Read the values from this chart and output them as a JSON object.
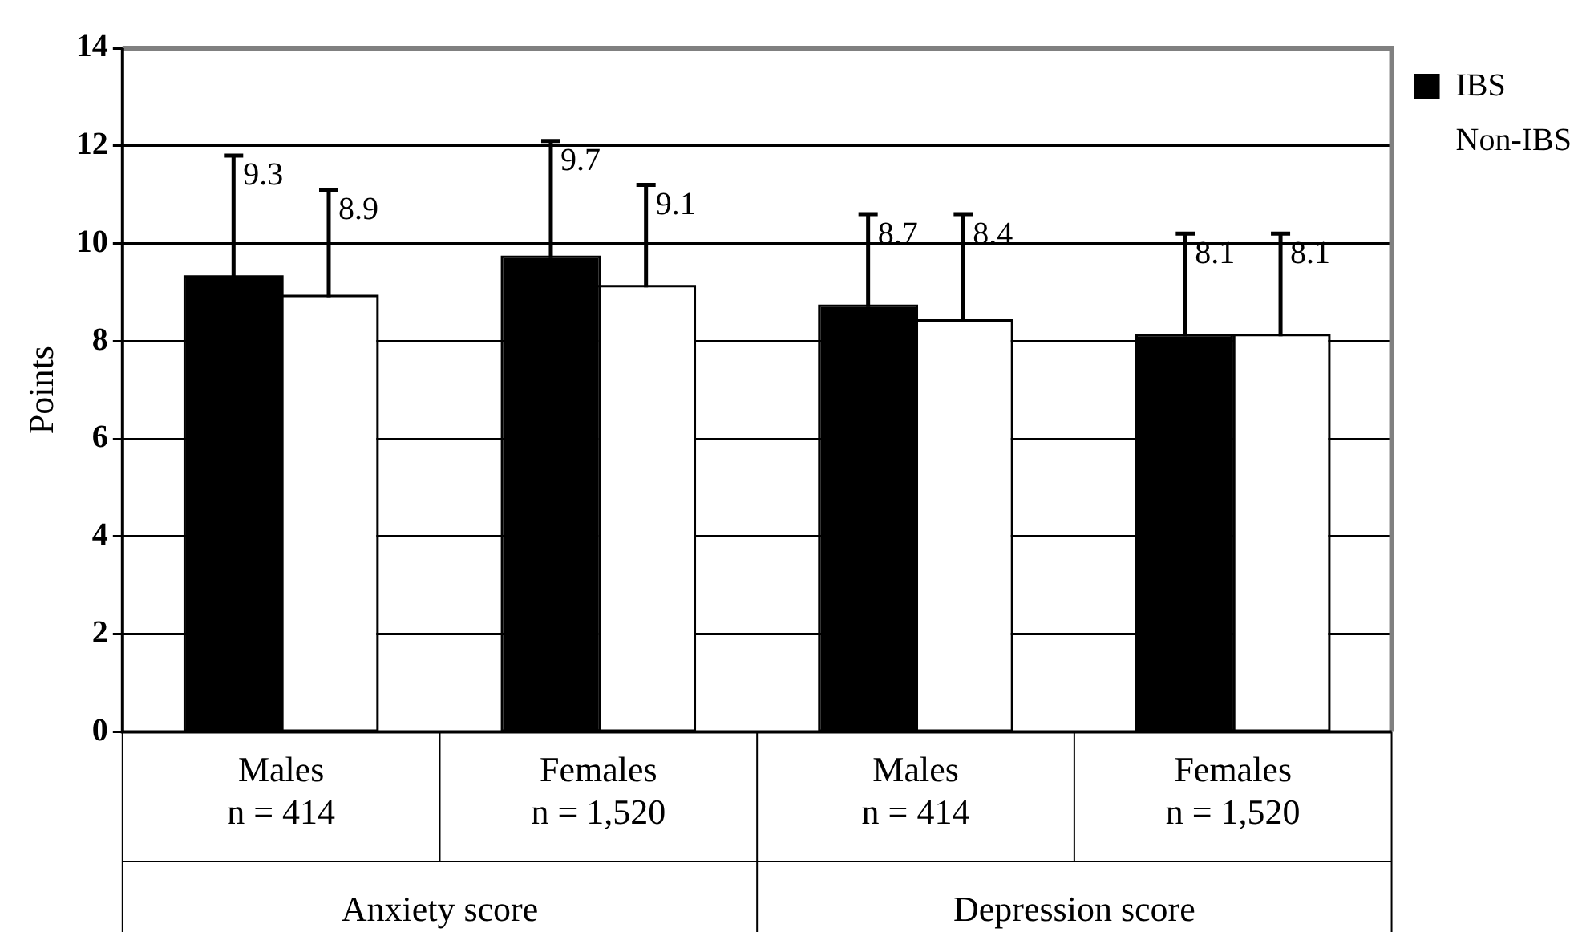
{
  "chart_data": {
    "type": "bar",
    "ylabel": "Points",
    "categories": [
      "Males\nn = 414",
      "Females\nn = 1,520",
      "Males\nn = 414",
      "Females\nn = 1,520"
    ],
    "series": [
      {
        "name": "IBS",
        "color": "#000000",
        "values": [
          9.3,
          9.7,
          8.7,
          8.1
        ],
        "errors": [
          [
            9.3,
            11.8
          ],
          [
            9.7,
            12.1
          ],
          [
            8.7,
            10.6
          ],
          [
            8.1,
            10.2
          ]
        ]
      },
      {
        "name": "Non-IBS",
        "color": "#ffffff",
        "values": [
          8.9,
          9.1,
          8.4,
          8.1
        ],
        "errors": [
          [
            8.9,
            11.1
          ],
          [
            9.1,
            11.2
          ],
          [
            8.4,
            10.6
          ],
          [
            8.1,
            10.2
          ]
        ]
      }
    ],
    "ylim": [
      0,
      14
    ],
    "yticks": [
      0,
      2,
      4,
      6,
      8,
      10,
      12,
      14
    ],
    "grid": "y",
    "legend": "right",
    "data_labels": true,
    "annotations": [
      "Anxiety score",
      "Depression score"
    ]
  }
}
